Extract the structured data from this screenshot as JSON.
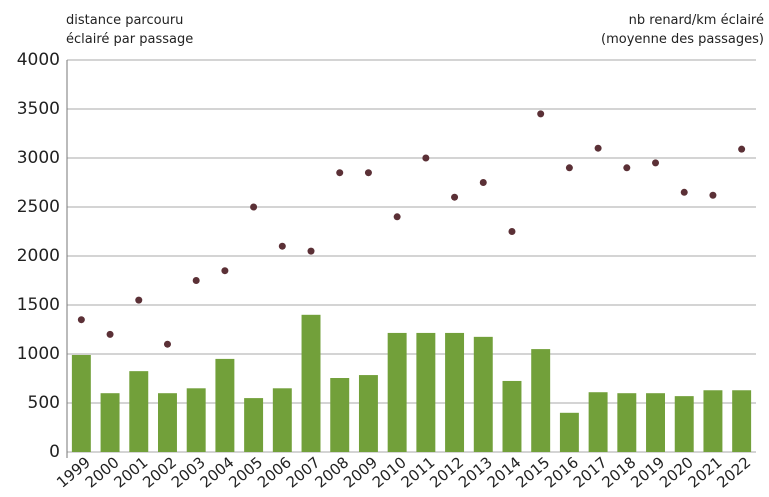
{
  "chart_data": {
    "type": "bar",
    "y_label": [
      "distance parcouru",
      "éclairé par passage"
    ],
    "y2_label": [
      "nb renard/km éclairé",
      "(moyenne des passages)"
    ],
    "categories": [
      "1999",
      "2000",
      "2001",
      "2002",
      "2003",
      "2004",
      "2005",
      "2006",
      "2007",
      "2008",
      "2009",
      "2010",
      "2011",
      "2012",
      "2013",
      "2014",
      "2015",
      "2016",
      "2017",
      "2018",
      "2019",
      "2020",
      "2021",
      "2022"
    ],
    "series": [
      {
        "type": "bar",
        "color": "#72a03a",
        "values": [
          990,
          600,
          825,
          600,
          650,
          950,
          550,
          650,
          1400,
          755,
          785,
          1215,
          1215,
          1215,
          1175,
          725,
          1050,
          400,
          610,
          600,
          600,
          570,
          630,
          630
        ]
      },
      {
        "type": "scatter",
        "color": "#5b3036",
        "values": [
          1350,
          1200,
          1550,
          1100,
          1750,
          1850,
          2500,
          2100,
          2050,
          2850,
          2850,
          2400,
          3000,
          2600,
          2750,
          2250,
          3450,
          2900,
          3100,
          2900,
          2950,
          2650,
          2620,
          3090
        ]
      }
    ],
    "ylim": [
      0,
      4000
    ],
    "yticks": [
      0,
      500,
      1000,
      1500,
      2000,
      2500,
      3000,
      3500,
      4000
    ],
    "grid": true
  }
}
